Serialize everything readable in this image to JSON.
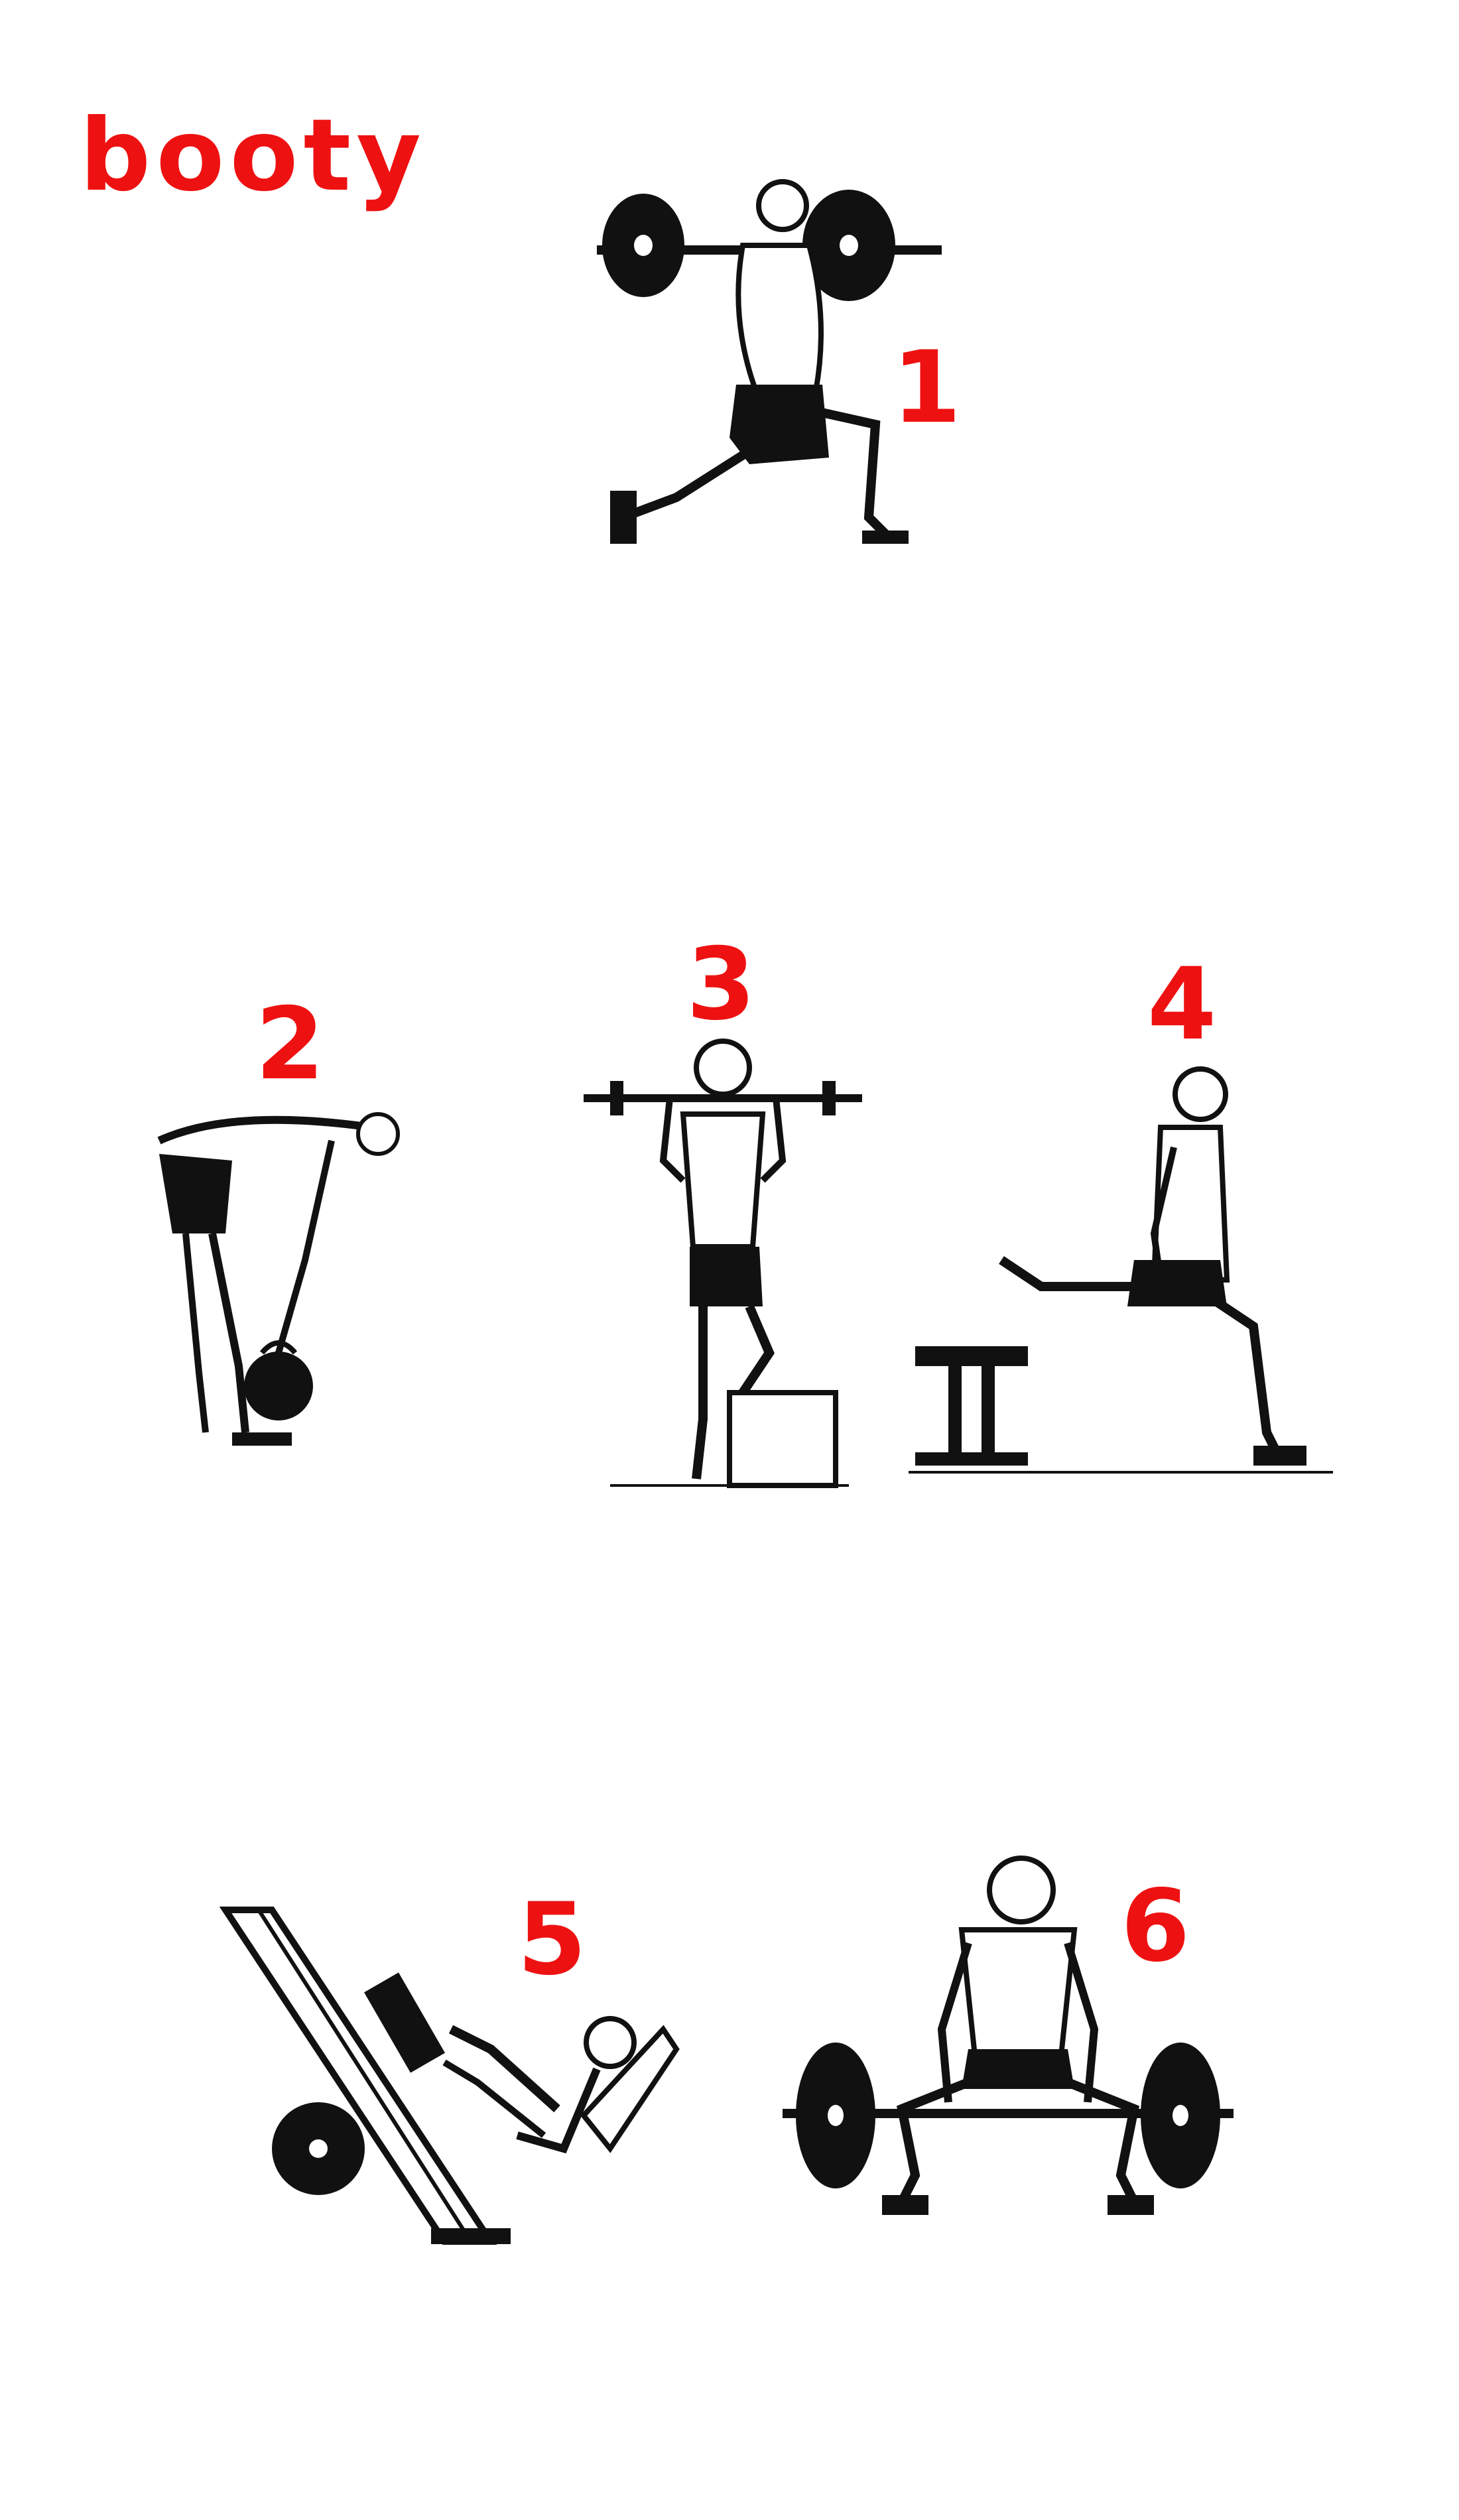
{
  "title": "booty",
  "accent_color": "#ee1111",
  "exercises": [
    {
      "number": "1",
      "illustration": "barbell-lunge-illustration"
    },
    {
      "number": "2",
      "illustration": "kettlebell-deadlift-illustration"
    },
    {
      "number": "3",
      "illustration": "barbell-step-up-illustration"
    },
    {
      "number": "4",
      "illustration": "bulgarian-split-squat-illustration"
    },
    {
      "number": "5",
      "illustration": "leg-press-illustration"
    },
    {
      "number": "6",
      "illustration": "barbell-sumo-deadlift-illustration"
    }
  ]
}
